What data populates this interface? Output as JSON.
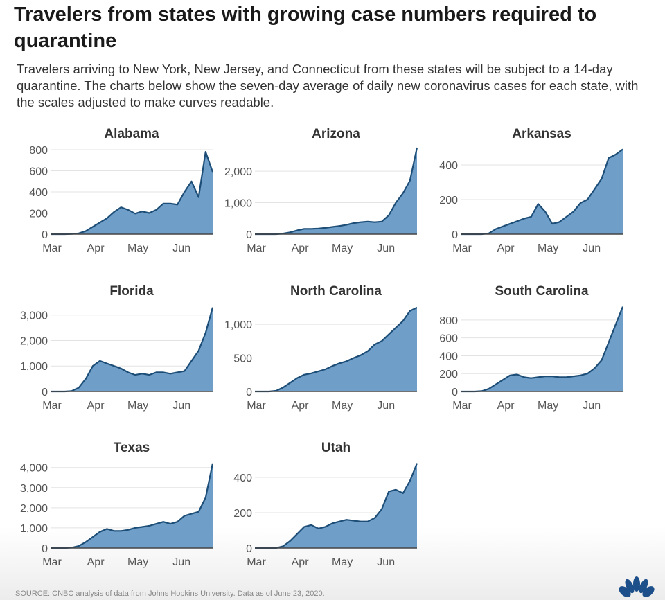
{
  "title": "Travelers from states with growing case numbers required to quarantine",
  "subtitle": "Travelers arriving to New York, New Jersey, and Connecticut from these states will be subject to a 14-day quarantine. The charts below show the seven-day average of daily new coronavirus cases for each state, with the scales adjusted to make curves readable.",
  "source": "SOURCE: CNBC analysis of data from Johns Hopkins University. Data as of June 23, 2020.",
  "logo": "NBC",
  "colors": {
    "fill": "#6f9fc8",
    "line": "#1d4e78",
    "grid": "#e3e3e3"
  },
  "chart_data": [
    {
      "type": "area",
      "title": "Alabama",
      "x_days_since_mar1": [
        0,
        5,
        10,
        15,
        20,
        25,
        30,
        35,
        40,
        45,
        50,
        55,
        60,
        65,
        70,
        75,
        80,
        85,
        90,
        95,
        100,
        105,
        110,
        115
      ],
      "values": [
        0,
        0,
        0,
        2,
        8,
        30,
        70,
        110,
        150,
        210,
        255,
        230,
        195,
        215,
        200,
        230,
        290,
        290,
        280,
        400,
        500,
        350,
        780,
        590
      ],
      "yticks": [
        0,
        200,
        400,
        600,
        800
      ],
      "ytick_labels": [
        "0",
        "200",
        "400",
        "600",
        "800"
      ],
      "ylim": [
        0,
        820
      ],
      "xticks": [
        "Mar",
        "Apr",
        "May",
        "Jun"
      ]
    },
    {
      "type": "area",
      "title": "Arizona",
      "x_days_since_mar1": [
        0,
        5,
        10,
        15,
        20,
        25,
        30,
        35,
        40,
        45,
        50,
        55,
        60,
        65,
        70,
        75,
        80,
        85,
        90,
        95,
        100,
        105,
        110,
        115
      ],
      "values": [
        0,
        0,
        0,
        0,
        20,
        60,
        120,
        170,
        170,
        180,
        200,
        230,
        260,
        300,
        350,
        380,
        400,
        380,
        400,
        600,
        1000,
        1300,
        1700,
        2750
      ],
      "yticks": [
        0,
        1000,
        2000
      ],
      "ytick_labels": [
        "0",
        "1,000",
        "2,000"
      ],
      "ylim": [
        0,
        2750
      ],
      "xticks": [
        "Mar",
        "Apr",
        "May",
        "Jun"
      ]
    },
    {
      "type": "area",
      "title": "Arkansas",
      "x_days_since_mar1": [
        0,
        5,
        10,
        15,
        20,
        25,
        30,
        35,
        40,
        45,
        50,
        55,
        60,
        65,
        70,
        75,
        80,
        85,
        90,
        95,
        100,
        105,
        110,
        115
      ],
      "values": [
        0,
        0,
        0,
        0,
        5,
        30,
        45,
        60,
        75,
        90,
        100,
        175,
        130,
        60,
        70,
        100,
        130,
        180,
        200,
        260,
        320,
        440,
        460,
        490
      ],
      "yticks": [
        0,
        200,
        400
      ],
      "ytick_labels": [
        "0",
        "200",
        "400"
      ],
      "ylim": [
        0,
        500
      ],
      "xticks": [
        "Mar",
        "Apr",
        "May",
        "Jun"
      ]
    },
    {
      "type": "area",
      "title": "Florida",
      "x_days_since_mar1": [
        0,
        5,
        10,
        15,
        20,
        25,
        30,
        35,
        40,
        45,
        50,
        55,
        60,
        65,
        70,
        75,
        80,
        85,
        90,
        95,
        100,
        105,
        110,
        115
      ],
      "values": [
        0,
        0,
        0,
        20,
        150,
        500,
        1000,
        1200,
        1100,
        1000,
        900,
        750,
        650,
        700,
        650,
        750,
        750,
        700,
        750,
        800,
        1200,
        1600,
        2300,
        3300
      ],
      "yticks": [
        0,
        1000,
        2000,
        3000
      ],
      "ytick_labels": [
        "0",
        "1,000",
        "2,000",
        "3,000"
      ],
      "ylim": [
        0,
        3400
      ],
      "xticks": [
        "Mar",
        "Apr",
        "May",
        "Jun"
      ]
    },
    {
      "type": "area",
      "title": "North Carolina",
      "x_days_since_mar1": [
        0,
        5,
        10,
        15,
        20,
        25,
        30,
        35,
        40,
        45,
        50,
        55,
        60,
        65,
        70,
        75,
        80,
        85,
        90,
        95,
        100,
        105,
        110,
        115
      ],
      "values": [
        0,
        0,
        0,
        10,
        60,
        130,
        200,
        250,
        270,
        300,
        330,
        380,
        420,
        450,
        500,
        540,
        600,
        700,
        750,
        850,
        950,
        1050,
        1200,
        1250
      ],
      "yticks": [
        0,
        500,
        1000
      ],
      "ytick_labels": [
        "0",
        "500",
        "1,000"
      ],
      "ylim": [
        0,
        1290
      ],
      "xticks": [
        "Mar",
        "Apr",
        "May",
        "Jun"
      ]
    },
    {
      "type": "area",
      "title": "South Carolina",
      "x_days_since_mar1": [
        0,
        5,
        10,
        15,
        20,
        25,
        30,
        35,
        40,
        45,
        50,
        55,
        60,
        65,
        70,
        75,
        80,
        85,
        90,
        95,
        100,
        105,
        110,
        115
      ],
      "values": [
        0,
        0,
        0,
        5,
        30,
        80,
        130,
        180,
        190,
        160,
        150,
        160,
        170,
        170,
        160,
        160,
        170,
        180,
        200,
        260,
        350,
        550,
        750,
        950
      ],
      "yticks": [
        0,
        200,
        400,
        600,
        800
      ],
      "ytick_labels": [
        "0",
        "200",
        "400",
        "600",
        "800"
      ],
      "ylim": [
        0,
        970
      ],
      "xticks": [
        "Mar",
        "Apr",
        "May",
        "Jun"
      ]
    },
    {
      "type": "area",
      "title": "Texas",
      "x_days_since_mar1": [
        0,
        5,
        10,
        15,
        20,
        25,
        30,
        35,
        40,
        45,
        50,
        55,
        60,
        65,
        70,
        75,
        80,
        85,
        90,
        95,
        100,
        105,
        110,
        115
      ],
      "values": [
        0,
        0,
        0,
        20,
        100,
        300,
        550,
        800,
        950,
        850,
        850,
        900,
        1000,
        1050,
        1100,
        1200,
        1300,
        1200,
        1300,
        1600,
        1700,
        1800,
        2500,
        4200
      ],
      "yticks": [
        0,
        1000,
        2000,
        3000,
        4000
      ],
      "ytick_labels": [
        "0",
        "1,000",
        "2,000",
        "3,000",
        "4,000"
      ],
      "ylim": [
        0,
        4300
      ],
      "xticks": [
        "Mar",
        "Apr",
        "May",
        "Jun"
      ]
    },
    {
      "type": "area",
      "title": "Utah",
      "x_days_since_mar1": [
        0,
        5,
        10,
        15,
        20,
        25,
        30,
        35,
        40,
        45,
        50,
        55,
        60,
        65,
        70,
        75,
        80,
        85,
        90,
        95,
        100,
        105,
        110,
        115
      ],
      "values": [
        0,
        0,
        0,
        0,
        10,
        40,
        80,
        120,
        130,
        110,
        120,
        140,
        150,
        160,
        155,
        150,
        150,
        170,
        220,
        320,
        330,
        310,
        380,
        480
      ],
      "yticks": [
        0,
        200,
        400
      ],
      "ytick_labels": [
        "0",
        "200",
        "400"
      ],
      "ylim": [
        0,
        490
      ],
      "xticks": [
        "Mar",
        "Apr",
        "May",
        "Jun"
      ]
    }
  ]
}
